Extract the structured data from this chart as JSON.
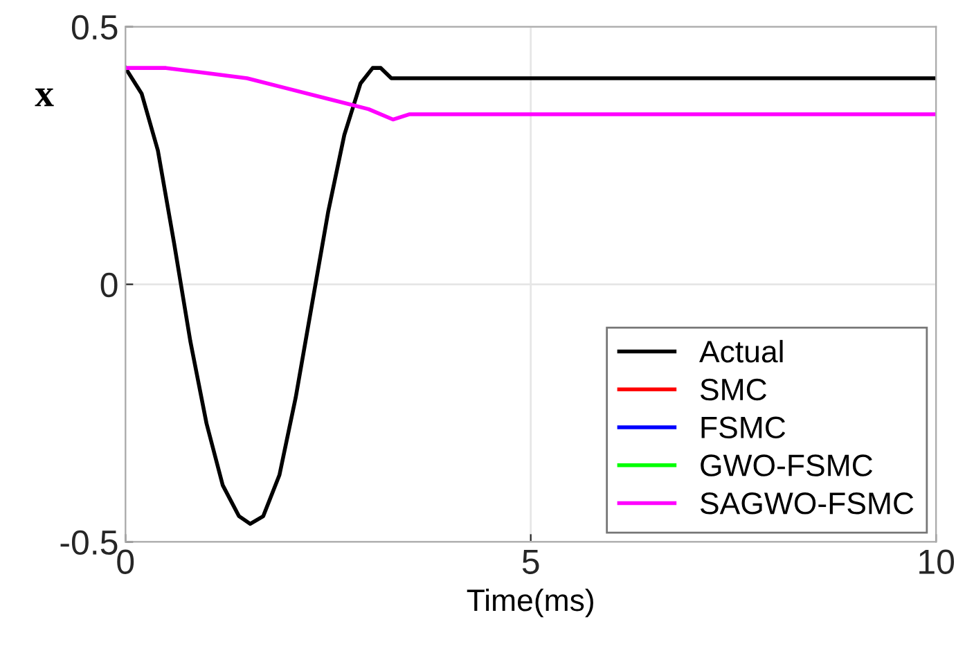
{
  "chart_data": {
    "type": "line",
    "xlabel": "Time(ms)",
    "ylabel": "x",
    "xlim": [
      0,
      10
    ],
    "ylim": [
      -0.5,
      0.5
    ],
    "xticks": [
      0,
      5,
      10
    ],
    "yticks": [
      0.5,
      0,
      -0.5
    ],
    "grid": true,
    "legend": "bottom right",
    "line_style": "solid",
    "series": [
      {
        "name": "Actual",
        "color": "#000000",
        "x": [
          0,
          0.2,
          0.4,
          0.6,
          0.8,
          1.0,
          1.2,
          1.4,
          1.54,
          1.7,
          1.9,
          2.1,
          2.3,
          2.5,
          2.7,
          2.9,
          3.05,
          3.15,
          3.28,
          10
        ],
        "values": [
          0.42,
          0.37,
          0.26,
          0.08,
          -0.11,
          -0.27,
          -0.39,
          -0.45,
          -0.465,
          -0.45,
          -0.37,
          -0.22,
          -0.04,
          0.14,
          0.29,
          0.39,
          0.42,
          0.42,
          0.4,
          0.4
        ]
      },
      {
        "name": "SMC",
        "color": "#ff0000"
      },
      {
        "name": "FSMC",
        "color": "#0000ff"
      },
      {
        "name": "GWO-FSMC",
        "color": "#00ff00"
      },
      {
        "name": "SAGWO-FSMC",
        "color": "#ff00ff",
        "x": [
          0,
          0.5,
          1.0,
          1.5,
          2.0,
          2.5,
          3.0,
          3.3,
          3.5,
          10
        ],
        "values": [
          0.42,
          0.42,
          0.41,
          0.4,
          0.38,
          0.36,
          0.34,
          0.32,
          0.33,
          0.33
        ]
      }
    ]
  }
}
